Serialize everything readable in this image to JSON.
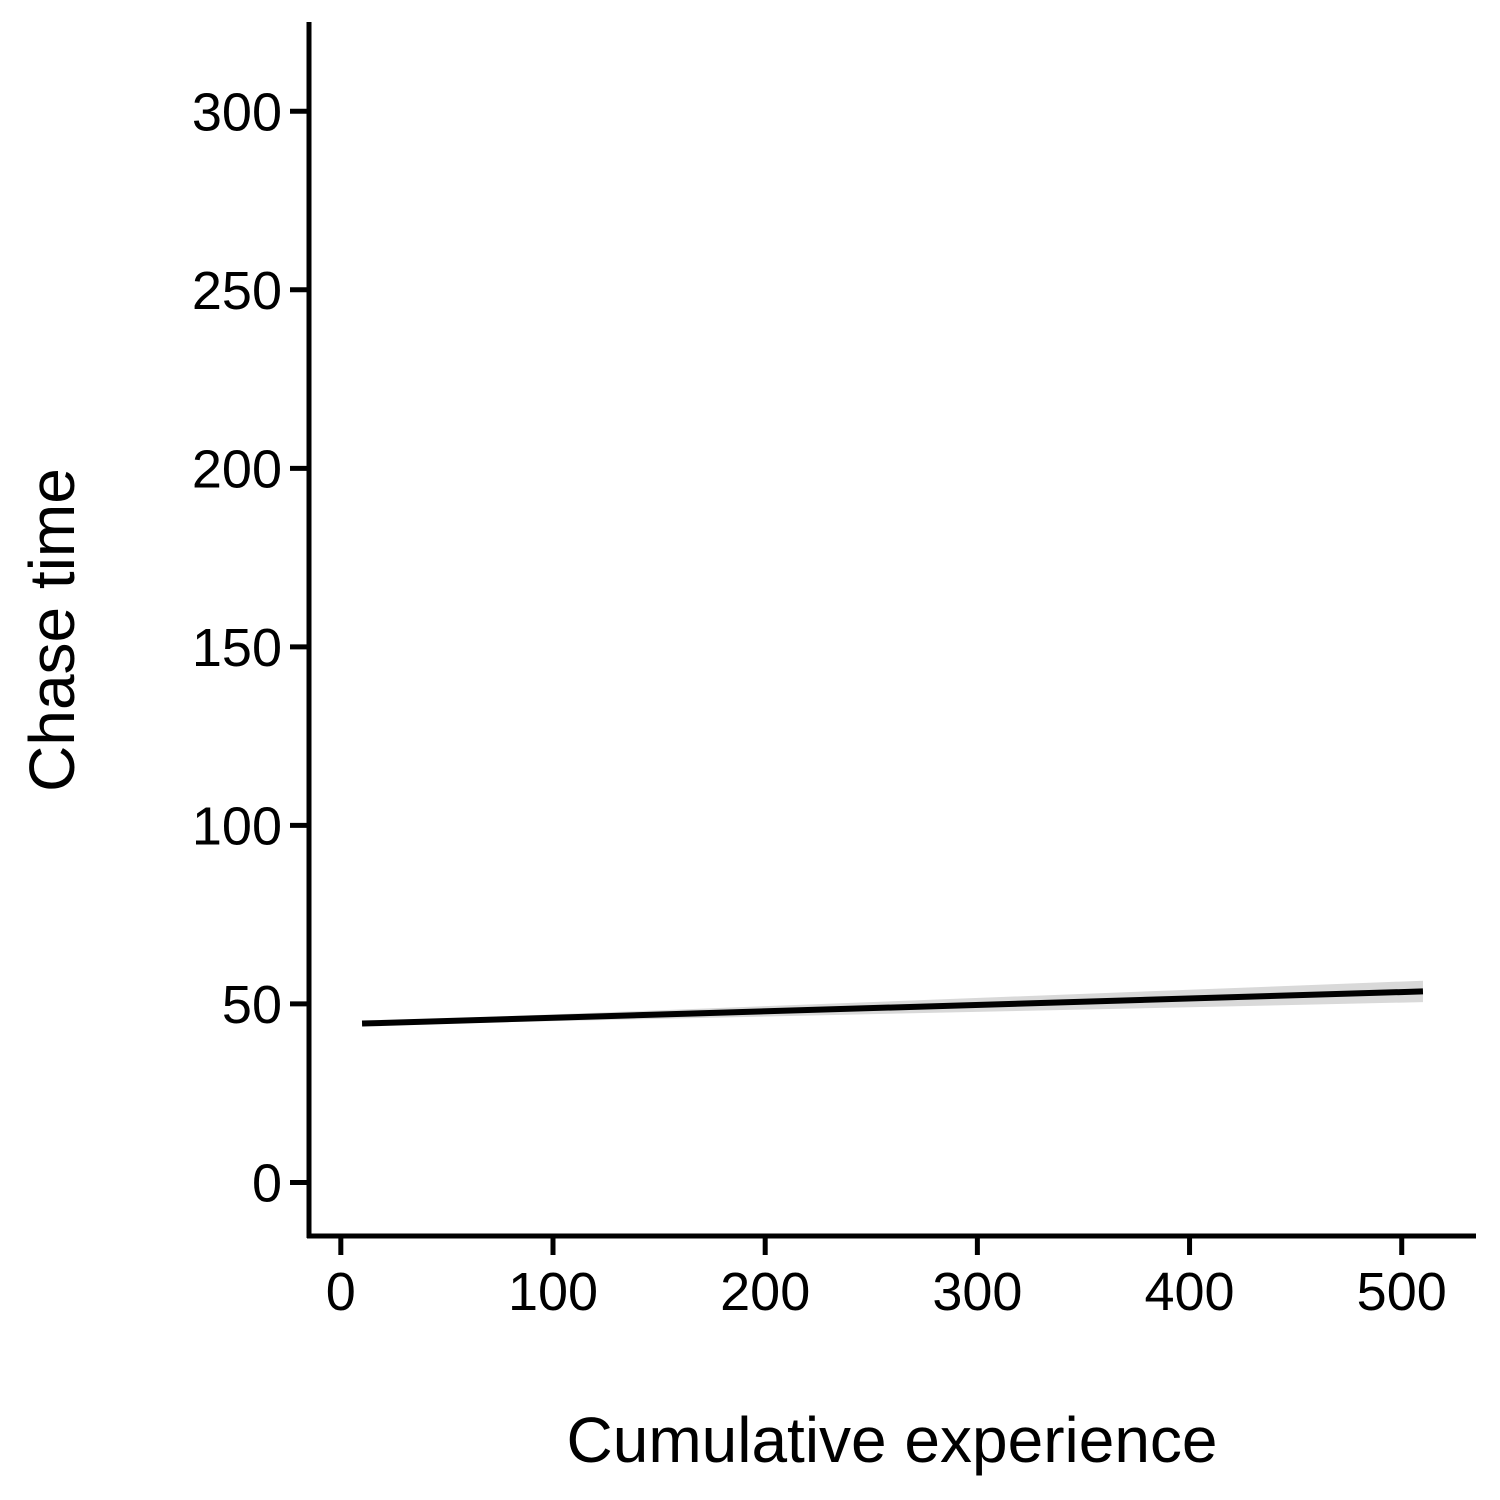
{
  "chart_data": {
    "type": "line",
    "xlabel": "Cumulative experience",
    "ylabel": "Chase time",
    "xlim": [
      -15,
      535
    ],
    "ylim": [
      -15,
      325
    ],
    "x_ticks": [
      0,
      100,
      200,
      300,
      400,
      500
    ],
    "y_ticks": [
      0,
      50,
      100,
      150,
      200,
      250,
      300
    ],
    "grid": false,
    "series": [
      {
        "x": [
          10,
          510
        ],
        "y": [
          44.5,
          53.5
        ],
        "ci_lower": [
          44.0,
          50.5
        ],
        "ci_upper": [
          45.0,
          56.5
        ]
      }
    ],
    "colors": {
      "line": "#000000",
      "ribbon": "#d9d9d9",
      "axis": "#000000"
    }
  }
}
